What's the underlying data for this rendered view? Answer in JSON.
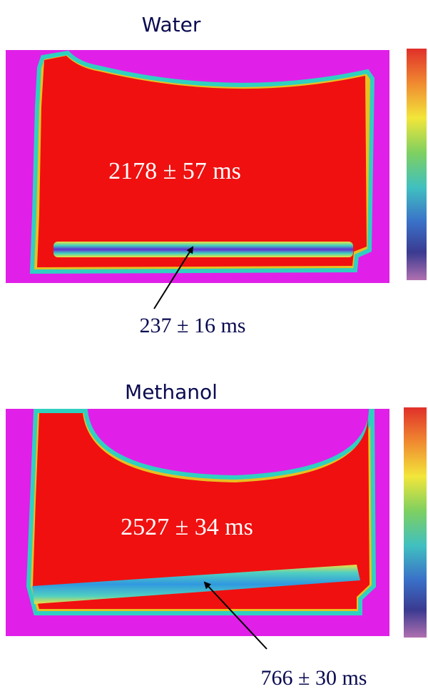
{
  "panels": [
    {
      "title": "Water",
      "region_label": "2178 ± 57 ms",
      "band_label": "237 ± 16 ms"
    },
    {
      "title": "Methanol",
      "region_label": "2527 ± 34 ms",
      "band_label": "766 ± 30 ms"
    }
  ]
}
